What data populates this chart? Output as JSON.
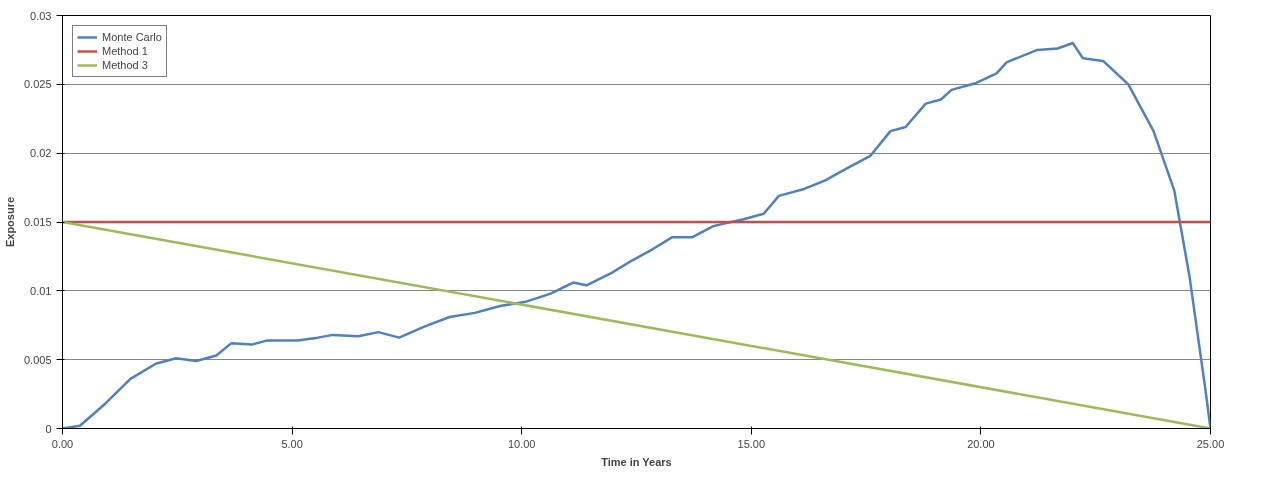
{
  "chart_data": {
    "type": "line",
    "xlabel": "Time in Years",
    "ylabel": "Exposure",
    "xlim": [
      0,
      25
    ],
    "ylim": [
      0,
      0.03
    ],
    "xticks": [
      {
        "value": 0,
        "label": "0.00"
      },
      {
        "value": 5,
        "label": "5.00"
      },
      {
        "value": 10,
        "label": "10.00"
      },
      {
        "value": 15,
        "label": "15.00"
      },
      {
        "value": 20,
        "label": "20.00"
      },
      {
        "value": 25,
        "label": "25.00"
      }
    ],
    "yticks": [
      0,
      0.005,
      0.01,
      0.015,
      0.02,
      0.025,
      0.03
    ],
    "grid": "y",
    "legend": "top left",
    "marker": "none",
    "line_style": "solid",
    "series": [
      {
        "name": "Monte Carlo",
        "color": "#4f81bd",
        "x": [
          0,
          0.38,
          0.93,
          1.48,
          2.03,
          2.47,
          2.91,
          3.35,
          3.68,
          4.13,
          4.46,
          5.12,
          5.56,
          5.89,
          6.44,
          6.88,
          7.33,
          7.88,
          8.43,
          8.98,
          9.53,
          10.08,
          10.63,
          11.12,
          11.41,
          11.96,
          12.4,
          12.84,
          13.28,
          13.72,
          14.17,
          14.83,
          15.27,
          15.6,
          16.15,
          16.6,
          17.03,
          17.59,
          18.03,
          18.36,
          18.8,
          19.13,
          19.36,
          19.9,
          20.34,
          20.56,
          21.23,
          21.67,
          22.0,
          22.22,
          22.66,
          23.21,
          23.76,
          24.21,
          24.54,
          24.87,
          25
        ],
        "values": [
          0,
          0.0002,
          0.0018,
          0.0036,
          0.0047,
          0.0051,
          0.0049,
          0.0053,
          0.0062,
          0.0061,
          0.0064,
          0.0064,
          0.0066,
          0.0068,
          0.0067,
          0.007,
          0.0066,
          0.0074,
          0.0081,
          0.0084,
          0.0089,
          0.0092,
          0.0098,
          0.0106,
          0.0104,
          0.0113,
          0.0122,
          0.013,
          0.0139,
          0.0139,
          0.0147,
          0.0152,
          0.0156,
          0.0169,
          0.0174,
          0.018,
          0.0188,
          0.0198,
          0.0216,
          0.0219,
          0.0236,
          0.0239,
          0.0246,
          0.0251,
          0.0258,
          0.0266,
          0.0275,
          0.0276,
          0.028,
          0.0269,
          0.0267,
          0.025,
          0.0216,
          0.0173,
          0.0111,
          0.0033,
          0
        ]
      },
      {
        "name": "Method 1",
        "color": "#c0504d",
        "x": [
          0,
          25
        ],
        "values": [
          0.015,
          0.015
        ]
      },
      {
        "name": "Method 3",
        "color": "#9bbb59",
        "x": [
          0,
          25
        ],
        "values": [
          0.015,
          0
        ]
      }
    ]
  }
}
